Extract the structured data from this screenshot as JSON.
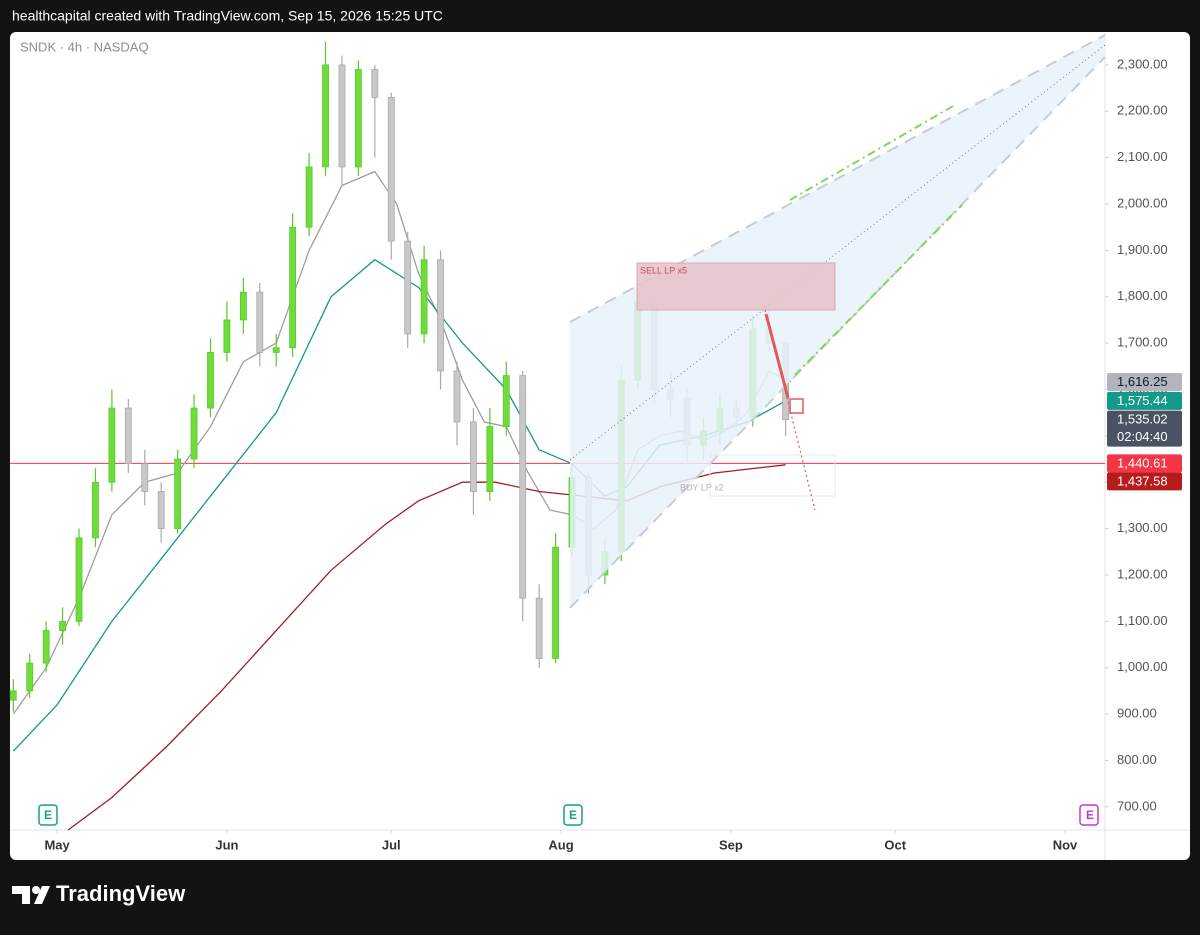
{
  "header": "healthcapital created with TradingView.com, Sep 15, 2026 15:25 UTC",
  "footer": "TradingView",
  "chart_data": {
    "type": "candlestick",
    "title": "SNDK · 4h · NASDAQ",
    "xlim": [
      -8.6,
      191.3
    ],
    "xticks": [
      {
        "value": 0,
        "label": "May"
      },
      {
        "value": 31,
        "label": "Jun"
      },
      {
        "value": 61,
        "label": "Jul"
      },
      {
        "value": 92,
        "label": "Aug"
      },
      {
        "value": 123,
        "label": "Sep"
      },
      {
        "value": 153,
        "label": "Oct"
      },
      {
        "value": 184,
        "label": "Nov"
      }
    ],
    "ylim": [
      650,
      2371
    ],
    "yticks": [
      {
        "value": 700,
        "label": "700.00"
      },
      {
        "value": 800,
        "label": "800.00"
      },
      {
        "value": 900,
        "label": "900.00"
      },
      {
        "value": 1000,
        "label": "1,000.00"
      },
      {
        "value": 1100,
        "label": "1,100.00"
      },
      {
        "value": 1200,
        "label": "1,200.00"
      },
      {
        "value": 1300,
        "label": "1,300.00"
      },
      {
        "value": 1400,
        "label": "1,400.00"
      },
      {
        "value": 1500,
        "label": "1,500.00"
      },
      {
        "value": 1600,
        "label": "1,600.00"
      },
      {
        "value": 1700,
        "label": "1,700.00"
      },
      {
        "value": 1800,
        "label": "1,800.00"
      },
      {
        "value": 1900,
        "label": "1,900.00"
      },
      {
        "value": 2000,
        "label": "2,000.00"
      },
      {
        "value": 2100,
        "label": "2,100.00"
      },
      {
        "value": 2200,
        "label": "2,200.00"
      },
      {
        "value": 2300,
        "label": "2,300.00"
      }
    ],
    "up_color": "#6fdc3a",
    "down_color": "#c8c8c8",
    "candles": [
      {
        "x": -8,
        "open": 930,
        "high": 975,
        "low": 905,
        "close": 950
      },
      {
        "x": -5,
        "open": 950,
        "high": 1030,
        "low": 935,
        "close": 1010
      },
      {
        "x": -2,
        "open": 1010,
        "high": 1100,
        "low": 990,
        "close": 1080
      },
      {
        "x": 1,
        "open": 1080,
        "high": 1130,
        "low": 1050,
        "close": 1100
      },
      {
        "x": 4,
        "open": 1100,
        "high": 1300,
        "low": 1090,
        "close": 1280
      },
      {
        "x": 7,
        "open": 1280,
        "high": 1430,
        "low": 1260,
        "close": 1400
      },
      {
        "x": 10,
        "open": 1400,
        "high": 1600,
        "low": 1380,
        "close": 1560
      },
      {
        "x": 13,
        "open": 1560,
        "high": 1580,
        "low": 1420,
        "close": 1440
      },
      {
        "x": 16,
        "open": 1440,
        "high": 1470,
        "low": 1350,
        "close": 1380
      },
      {
        "x": 19,
        "open": 1380,
        "high": 1400,
        "low": 1270,
        "close": 1300
      },
      {
        "x": 22,
        "open": 1300,
        "high": 1470,
        "low": 1290,
        "close": 1450
      },
      {
        "x": 25,
        "open": 1450,
        "high": 1590,
        "low": 1430,
        "close": 1560
      },
      {
        "x": 28,
        "open": 1560,
        "high": 1710,
        "low": 1540,
        "close": 1680
      },
      {
        "x": 31,
        "open": 1680,
        "high": 1790,
        "low": 1660,
        "close": 1750
      },
      {
        "x": 34,
        "open": 1750,
        "high": 1840,
        "low": 1720,
        "close": 1810
      },
      {
        "x": 37,
        "open": 1810,
        "high": 1830,
        "low": 1650,
        "close": 1680
      },
      {
        "x": 40,
        "open": 1680,
        "high": 1720,
        "low": 1650,
        "close": 1690
      },
      {
        "x": 43,
        "open": 1690,
        "high": 1980,
        "low": 1670,
        "close": 1950
      },
      {
        "x": 46,
        "open": 1950,
        "high": 2110,
        "low": 1930,
        "close": 2080
      },
      {
        "x": 49,
        "open": 2080,
        "high": 2350,
        "low": 2060,
        "close": 2300
      },
      {
        "x": 52,
        "open": 2300,
        "high": 2320,
        "low": 2040,
        "close": 2080
      },
      {
        "x": 55,
        "open": 2080,
        "high": 2310,
        "low": 2060,
        "close": 2290
      },
      {
        "x": 58,
        "open": 2290,
        "high": 2300,
        "low": 2100,
        "close": 2230
      },
      {
        "x": 61,
        "open": 2230,
        "high": 2240,
        "low": 1880,
        "close": 1920
      },
      {
        "x": 64,
        "open": 1920,
        "high": 1940,
        "low": 1690,
        "close": 1720
      },
      {
        "x": 67,
        "open": 1720,
        "high": 1910,
        "low": 1700,
        "close": 1880
      },
      {
        "x": 70,
        "open": 1880,
        "high": 1900,
        "low": 1600,
        "close": 1640
      },
      {
        "x": 73,
        "open": 1640,
        "high": 1660,
        "low": 1480,
        "close": 1530
      },
      {
        "x": 76,
        "open": 1530,
        "high": 1560,
        "low": 1330,
        "close": 1380
      },
      {
        "x": 79,
        "open": 1380,
        "high": 1560,
        "low": 1360,
        "close": 1520
      },
      {
        "x": 82,
        "open": 1520,
        "high": 1660,
        "low": 1500,
        "close": 1630
      },
      {
        "x": 85,
        "open": 1630,
        "high": 1640,
        "low": 1100,
        "close": 1150
      },
      {
        "x": 88,
        "open": 1150,
        "high": 1180,
        "low": 1000,
        "close": 1020
      },
      {
        "x": 91,
        "open": 1020,
        "high": 1290,
        "low": 1010,
        "close": 1260
      },
      {
        "x": 94,
        "open": 1260,
        "high": 1440,
        "low": 1240,
        "close": 1410
      },
      {
        "x": 97,
        "open": 1410,
        "high": 1420,
        "low": 1160,
        "close": 1200
      },
      {
        "x": 100,
        "open": 1200,
        "high": 1280,
        "low": 1180,
        "close": 1250
      },
      {
        "x": 103,
        "open": 1250,
        "high": 1650,
        "low": 1230,
        "close": 1620
      },
      {
        "x": 106,
        "open": 1620,
        "high": 1830,
        "low": 1600,
        "close": 1790
      },
      {
        "x": 109,
        "open": 1790,
        "high": 1800,
        "low": 1570,
        "close": 1600
      },
      {
        "x": 112,
        "open": 1600,
        "high": 1640,
        "low": 1540,
        "close": 1580
      },
      {
        "x": 115,
        "open": 1580,
        "high": 1600,
        "low": 1440,
        "close": 1480
      },
      {
        "x": 118,
        "open": 1480,
        "high": 1540,
        "low": 1450,
        "close": 1510
      },
      {
        "x": 121,
        "open": 1510,
        "high": 1590,
        "low": 1480,
        "close": 1560
      },
      {
        "x": 124,
        "open": 1560,
        "high": 1580,
        "low": 1510,
        "close": 1540
      },
      {
        "x": 127,
        "open": 1540,
        "high": 1760,
        "low": 1520,
        "close": 1730
      },
      {
        "x": 130,
        "open": 1730,
        "high": 1800,
        "low": 1680,
        "close": 1700
      },
      {
        "x": 133,
        "open": 1700,
        "high": 1710,
        "low": 1500,
        "close": 1535.02
      }
    ],
    "lines": [
      {
        "color": "#9e9e9e",
        "x": [
          -8,
          -2,
          4,
          10,
          16,
          22,
          28,
          34,
          40,
          46,
          52,
          58,
          62,
          66,
          70,
          74,
          78,
          82,
          86,
          90,
          94,
          98,
          102,
          106,
          110,
          114,
          118,
          122,
          126,
          130,
          134
        ],
        "values": [
          900,
          1000,
          1150,
          1330,
          1400,
          1420,
          1520,
          1660,
          1700,
          1900,
          2040,
          2070,
          2000,
          1850,
          1750,
          1620,
          1530,
          1520,
          1420,
          1340,
          1330,
          1300,
          1340,
          1470,
          1500,
          1510,
          1490,
          1510,
          1550,
          1640,
          1616.25
        ]
      },
      {
        "color": "#14998a",
        "x": [
          -8,
          0,
          10,
          20,
          30,
          40,
          50,
          58,
          66,
          74,
          82,
          88,
          94,
          100,
          104,
          110,
          118,
          126,
          133
        ],
        "values": [
          820,
          920,
          1100,
          1250,
          1400,
          1550,
          1800,
          1880,
          1820,
          1700,
          1600,
          1470,
          1440,
          1370,
          1390,
          1480,
          1500,
          1530,
          1575.44
        ]
      },
      {
        "color": "#a11d22",
        "x": [
          2,
          10,
          20,
          30,
          40,
          50,
          60,
          66,
          74,
          80,
          88,
          96,
          104,
          110,
          120,
          133
        ],
        "values": [
          650,
          720,
          830,
          950,
          1080,
          1210,
          1310,
          1360,
          1400,
          1400,
          1380,
          1370,
          1360,
          1390,
          1420,
          1437.58
        ]
      }
    ],
    "hline": {
      "value": 1440.61,
      "color": "#f23645"
    },
    "price_tags": [
      {
        "value": 1616.25,
        "label": "1,616.25",
        "color": "#b2b5be",
        "text_color": "#131722"
      },
      {
        "value": 1575.44,
        "label": "1,575.44",
        "color": "#14998a",
        "text_color": "#ffffff"
      },
      {
        "value": 1535.02,
        "label": "1,535.02",
        "countdown": "02:04:40",
        "color": "#4b5263",
        "text_color": "#ffffff"
      },
      {
        "value": 1440.61,
        "label": "1,440.61",
        "color": "#f23645",
        "text_color": "#ffffff"
      },
      {
        "value": 1437.58,
        "label": "1,437.58",
        "color": "#b71c1c",
        "text_color": "#ffffff"
      }
    ],
    "annotations": [
      "SELL LP x5",
      "BUY LP x2"
    ],
    "earnings_marker": "E"
  }
}
